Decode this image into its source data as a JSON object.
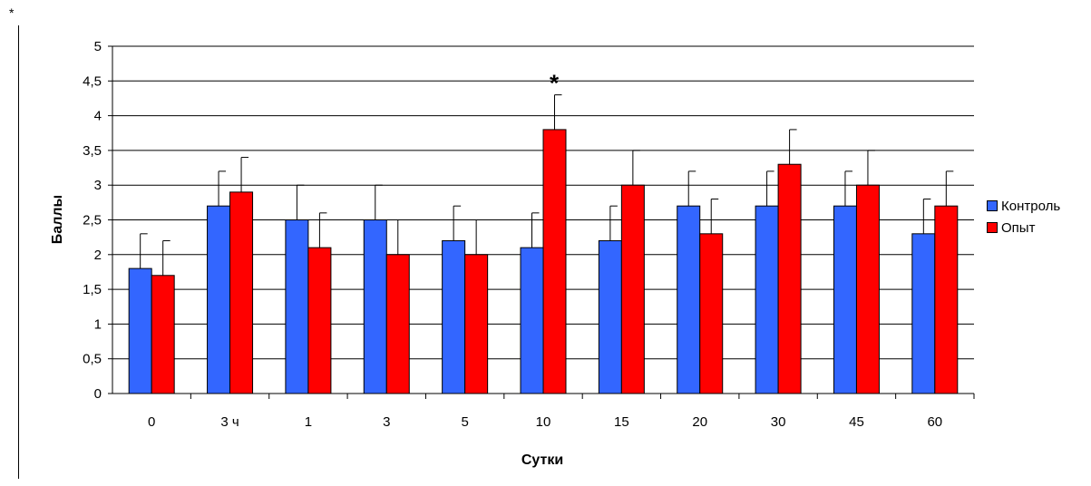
{
  "corner_mark": "*",
  "chart_data": {
    "type": "bar",
    "title": "",
    "xlabel": "Сутки",
    "ylabel": "Баллы",
    "ylim": [
      0,
      5
    ],
    "yticks": [
      "0",
      "0,5",
      "1",
      "1,5",
      "2",
      "2,5",
      "3",
      "3,5",
      "4",
      "4,5",
      "5"
    ],
    "categories": [
      "0",
      "3 ч",
      "1",
      "3",
      "5",
      "10",
      "15",
      "20",
      "30",
      "45",
      "60"
    ],
    "grid": true,
    "legend_position": "right",
    "series": [
      {
        "name": "Контроль",
        "color": "#3366ff",
        "values": [
          1.8,
          2.7,
          2.5,
          2.5,
          2.2,
          2.1,
          2.2,
          2.7,
          2.7,
          2.7,
          2.3
        ],
        "errors": [
          0.5,
          0.5,
          0.5,
          0.5,
          0.5,
          0.5,
          0.5,
          0.5,
          0.5,
          0.5,
          0.5
        ]
      },
      {
        "name": "Опыт",
        "color": "#ff0000",
        "values": [
          1.7,
          2.9,
          2.1,
          2.0,
          2.0,
          3.8,
          3.0,
          2.3,
          3.3,
          3.0,
          2.7
        ],
        "errors": [
          0.5,
          0.5,
          0.5,
          0.5,
          0.5,
          0.5,
          0.5,
          0.5,
          0.5,
          0.5,
          0.5
        ]
      }
    ],
    "annotations": [
      {
        "text": "*",
        "category": "10"
      }
    ]
  }
}
